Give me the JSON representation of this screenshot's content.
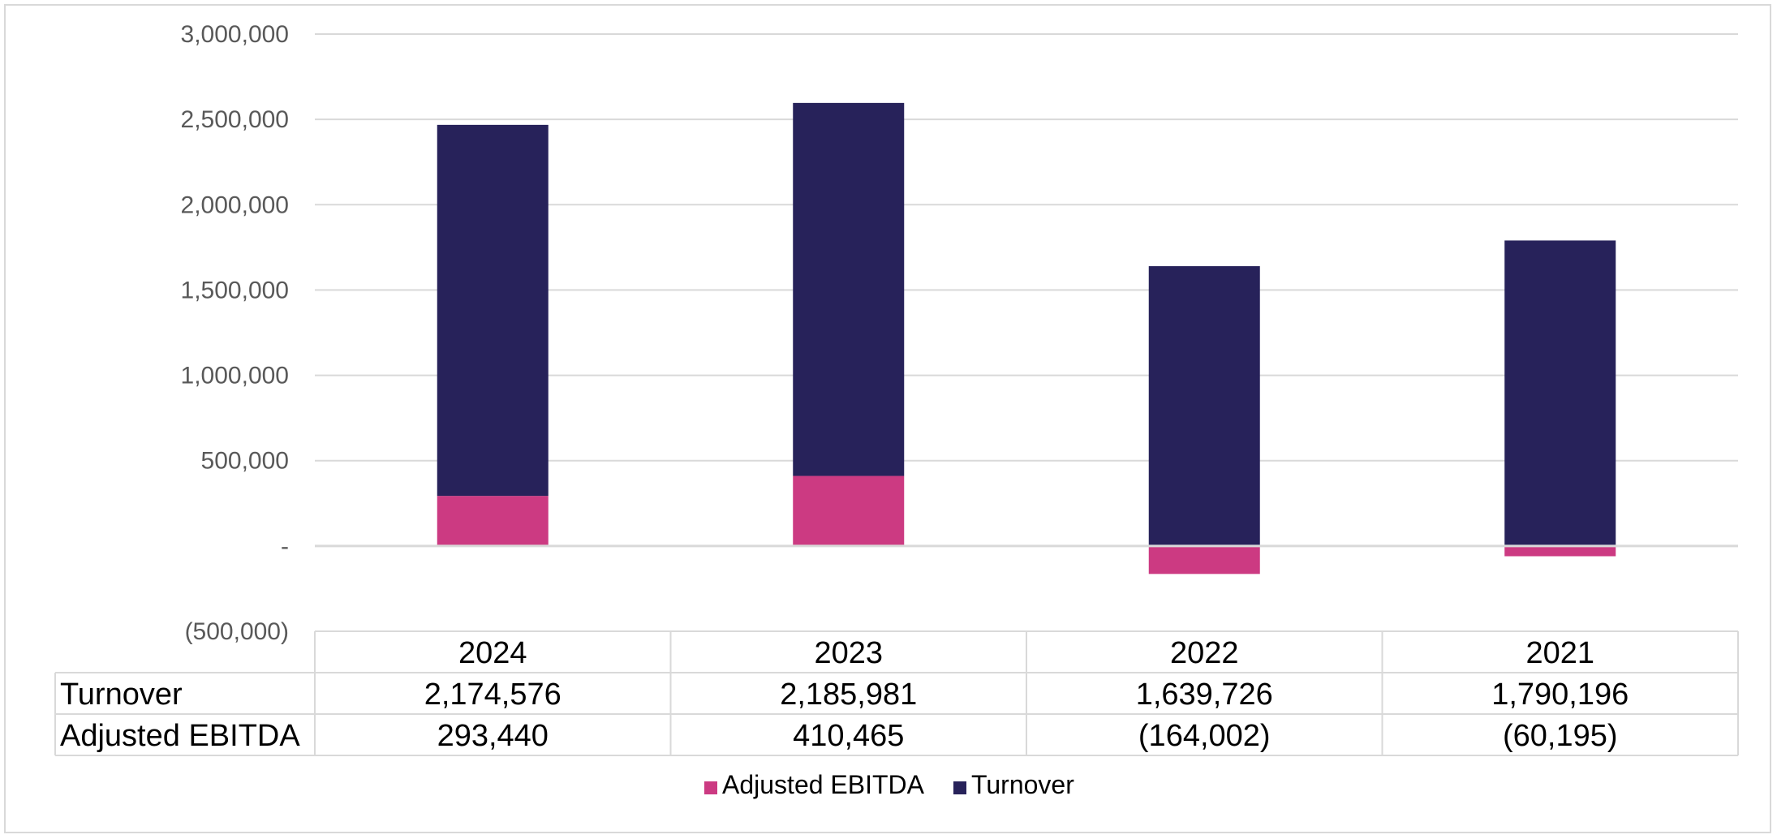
{
  "chart_data": {
    "type": "bar",
    "stacked": true,
    "categories": [
      "2024",
      "2023",
      "2022",
      "2021"
    ],
    "series": [
      {
        "name": "Adjusted EBITDA",
        "values": [
          293440,
          410465,
          -164002,
          -60195
        ],
        "labels": [
          "293,440",
          "410,465",
          "(164,002)",
          "(60,195)"
        ],
        "color": "#cc3a82"
      },
      {
        "name": "Turnover",
        "values": [
          2174576,
          2185981,
          1639726,
          1790196
        ],
        "labels": [
          "2,174,576",
          "2,185,981",
          "1,639,726",
          "1,790,196"
        ],
        "color": "#27225a"
      }
    ],
    "ylim": [
      -500000,
      3000000
    ],
    "yticks": [
      3000000,
      2500000,
      2000000,
      1500000,
      1000000,
      500000,
      0,
      -500000
    ],
    "ytick_labels": [
      "3,000,000",
      "2,500,000",
      "2,000,000",
      "1,500,000",
      "1,000,000",
      "500,000",
      "-",
      "(500,000)"
    ],
    "grid": true,
    "legend": {
      "position": "bottom",
      "entries": [
        "Adjusted EBITDA",
        "Turnover"
      ]
    },
    "data_table": {
      "row_labels": [
        "Turnover",
        "Adjusted EBITDA"
      ]
    },
    "title": "",
    "xlabel": "",
    "ylabel": ""
  }
}
